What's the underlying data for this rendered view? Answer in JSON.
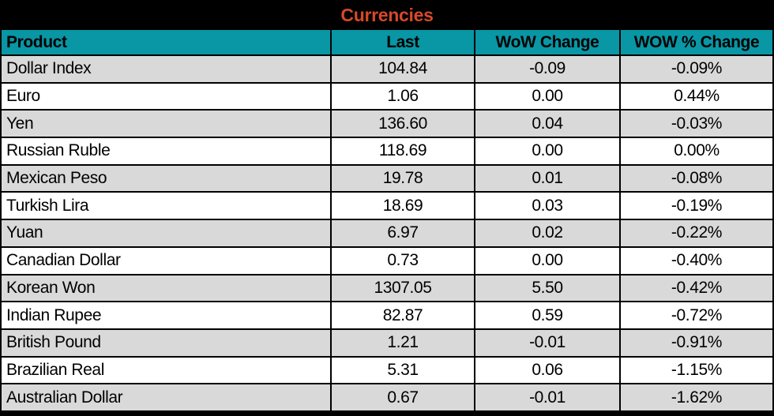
{
  "title": "Currencies",
  "colors": {
    "title_bg": "#000000",
    "title_text": "#D8482B",
    "header_bg": "#0996A5",
    "row_alt_bg": "#D9D9D9",
    "row_bg": "#FFFFFF",
    "grid_border": "#000000"
  },
  "chart_data": {
    "type": "table",
    "title": "Currencies",
    "columns": [
      "Product",
      "Last",
      "WoW Change",
      "WOW % Change"
    ],
    "rows": [
      {
        "product": "Dollar Index",
        "last": "104.84",
        "wow_change": "-0.09",
        "wow_pct_change": "-0.09%"
      },
      {
        "product": "Euro",
        "last": "1.06",
        "wow_change": "0.00",
        "wow_pct_change": "0.44%"
      },
      {
        "product": "Yen",
        "last": "136.60",
        "wow_change": "0.04",
        "wow_pct_change": "-0.03%"
      },
      {
        "product": "Russian Ruble",
        "last": "118.69",
        "wow_change": "0.00",
        "wow_pct_change": "0.00%"
      },
      {
        "product": "Mexican Peso",
        "last": "19.78",
        "wow_change": "0.01",
        "wow_pct_change": "-0.08%"
      },
      {
        "product": "Turkish Lira",
        "last": "18.69",
        "wow_change": "0.03",
        "wow_pct_change": "-0.19%"
      },
      {
        "product": "Yuan",
        "last": "6.97",
        "wow_change": "0.02",
        "wow_pct_change": "-0.22%"
      },
      {
        "product": "Canadian Dollar",
        "last": "0.73",
        "wow_change": "0.00",
        "wow_pct_change": "-0.40%"
      },
      {
        "product": "Korean Won",
        "last": "1307.05",
        "wow_change": "5.50",
        "wow_pct_change": "-0.42%"
      },
      {
        "product": "Indian Rupee",
        "last": "82.87",
        "wow_change": "0.59",
        "wow_pct_change": "-0.72%"
      },
      {
        "product": "British Pound",
        "last": "1.21",
        "wow_change": "-0.01",
        "wow_pct_change": "-0.91%"
      },
      {
        "product": "Brazilian Real",
        "last": "5.31",
        "wow_change": "0.06",
        "wow_pct_change": "-1.15%"
      },
      {
        "product": "Australian Dollar",
        "last": "0.67",
        "wow_change": "-0.01",
        "wow_pct_change": "-1.62%"
      }
    ]
  }
}
